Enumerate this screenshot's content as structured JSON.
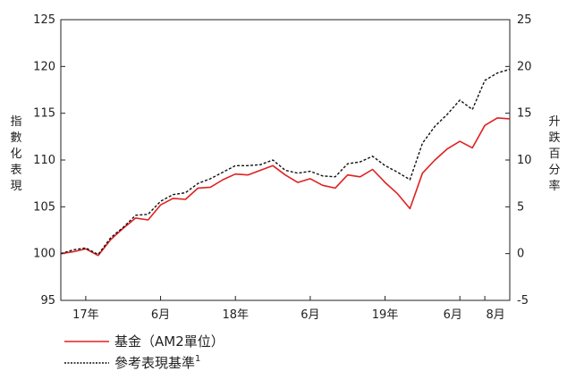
{
  "chart_data": {
    "type": "line",
    "x_ticks": [
      "17年",
      "6月",
      "18年",
      "6月",
      "19年",
      "6月",
      "8月"
    ],
    "y_left": {
      "label": "指數化表現",
      "ticks": [
        95,
        100,
        105,
        110,
        115,
        120,
        125
      ],
      "range": [
        95,
        125
      ]
    },
    "y_right": {
      "label": "升跌百分率",
      "ticks": [
        -5,
        0,
        5,
        10,
        15,
        20,
        25
      ],
      "range": [
        -5,
        25
      ]
    },
    "series": [
      {
        "name": "基金（AM2單位）",
        "style": "solid",
        "color": "#e02020",
        "values": [
          100.0,
          100.2,
          100.5,
          99.8,
          101.5,
          102.7,
          103.8,
          103.6,
          105.2,
          105.9,
          105.8,
          107.0,
          107.1,
          107.9,
          108.5,
          108.4,
          108.9,
          109.4,
          108.4,
          107.6,
          108.0,
          107.3,
          107.0,
          108.4,
          108.2,
          109.0,
          107.6,
          106.4,
          104.8,
          108.6,
          110.0,
          111.2,
          112.0,
          111.3,
          113.7,
          114.5,
          114.4
        ]
      },
      {
        "name": "參考表現基準",
        "name_sup": "1",
        "style": "dashed",
        "color": "#111111",
        "values": [
          100.0,
          100.4,
          100.6,
          99.9,
          101.7,
          102.8,
          104.1,
          104.2,
          105.6,
          106.3,
          106.5,
          107.5,
          108.0,
          108.7,
          109.4,
          109.4,
          109.5,
          110.0,
          108.9,
          108.6,
          108.8,
          108.3,
          108.2,
          109.6,
          109.8,
          110.4,
          109.4,
          108.7,
          107.9,
          111.8,
          113.6,
          114.9,
          116.4,
          115.4,
          118.5,
          119.3,
          119.7
        ]
      }
    ]
  }
}
